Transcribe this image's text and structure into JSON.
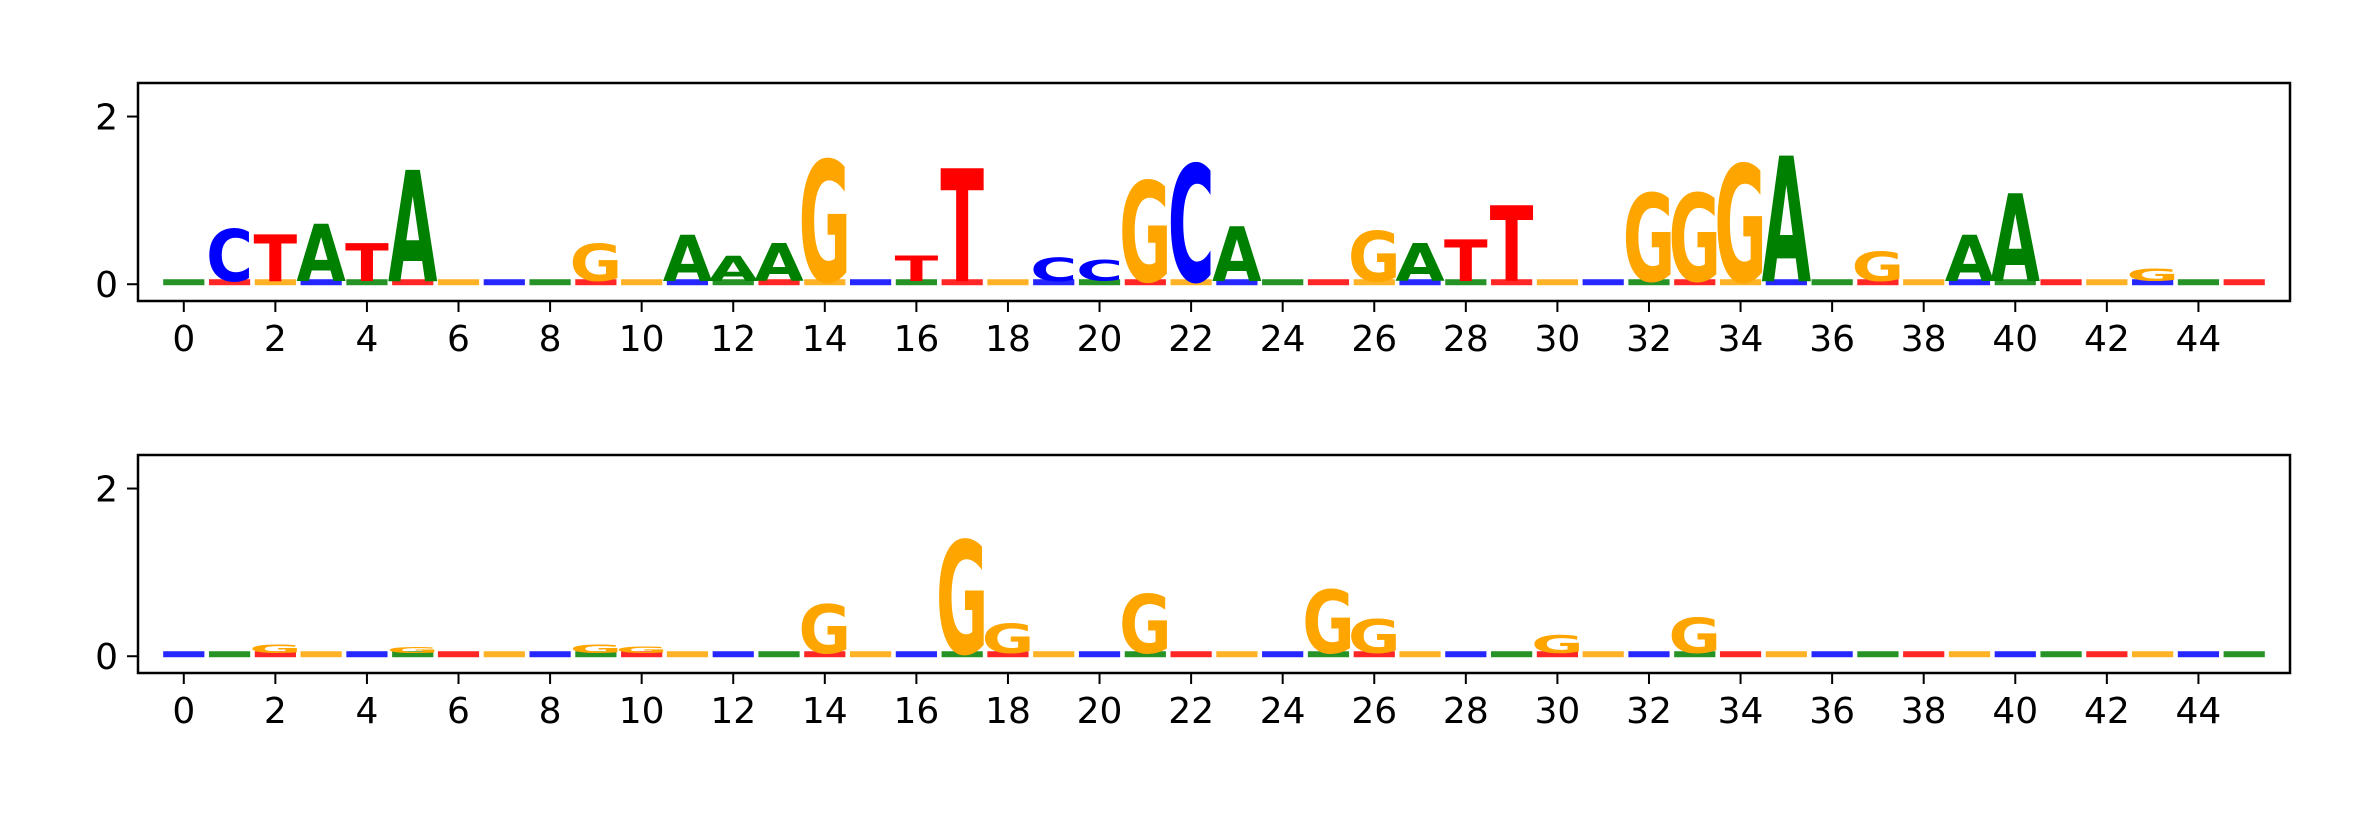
{
  "colors": {
    "A": "#008000",
    "C": "#0000ff",
    "G": "#ffa500",
    "T": "#ff0000"
  },
  "chart_data": [
    {
      "type": "sequence-logo",
      "x_ticks": [
        "0",
        "2",
        "4",
        "6",
        "8",
        "10",
        "12",
        "14",
        "16",
        "18",
        "20",
        "22",
        "24",
        "26",
        "28",
        "30",
        "32",
        "34",
        "36",
        "38",
        "40",
        "42",
        "44"
      ],
      "y_ticks": [
        "0",
        "2"
      ],
      "xlim": [
        -1,
        46
      ],
      "ylim": [
        -0.2,
        2.4
      ],
      "positions": [
        {
          "pos": 1,
          "letter": "C",
          "height": 0.62
        },
        {
          "pos": 2,
          "letter": "T",
          "height": 0.56
        },
        {
          "pos": 3,
          "letter": "A",
          "height": 0.68
        },
        {
          "pos": 4,
          "letter": "T",
          "height": 0.45
        },
        {
          "pos": 5,
          "letter": "A",
          "height": 1.33
        },
        {
          "pos": 9,
          "letter": "G",
          "height": 0.44
        },
        {
          "pos": 11,
          "letter": "A",
          "height": 0.55
        },
        {
          "pos": 12,
          "letter": "A",
          "height": 0.3
        },
        {
          "pos": 13,
          "letter": "A",
          "height": 0.45
        },
        {
          "pos": 14,
          "letter": "G",
          "height": 1.45
        },
        {
          "pos": 16,
          "letter": "T",
          "height": 0.3
        },
        {
          "pos": 17,
          "letter": "T",
          "height": 1.35
        },
        {
          "pos": 19,
          "letter": "C",
          "height": 0.28
        },
        {
          "pos": 20,
          "letter": "C",
          "height": 0.25
        },
        {
          "pos": 21,
          "letter": "G",
          "height": 1.2
        },
        {
          "pos": 22,
          "letter": "C",
          "height": 1.4
        },
        {
          "pos": 23,
          "letter": "A",
          "height": 0.65
        },
        {
          "pos": 26,
          "letter": "G",
          "height": 0.6
        },
        {
          "pos": 27,
          "letter": "A",
          "height": 0.45
        },
        {
          "pos": 28,
          "letter": "T",
          "height": 0.5
        },
        {
          "pos": 29,
          "letter": "T",
          "height": 0.9
        },
        {
          "pos": 32,
          "letter": "G",
          "height": 1.05
        },
        {
          "pos": 33,
          "letter": "G",
          "height": 1.05
        },
        {
          "pos": 34,
          "letter": "G",
          "height": 1.4
        },
        {
          "pos": 35,
          "letter": "A",
          "height": 1.5
        },
        {
          "pos": 37,
          "letter": "G",
          "height": 0.35
        },
        {
          "pos": 39,
          "letter": "A",
          "height": 0.55
        },
        {
          "pos": 40,
          "letter": "A",
          "height": 1.05
        },
        {
          "pos": 43,
          "letter": "G",
          "height": 0.15
        }
      ]
    },
    {
      "type": "sequence-logo",
      "x_ticks": [
        "0",
        "2",
        "4",
        "6",
        "8",
        "10",
        "12",
        "14",
        "16",
        "18",
        "20",
        "22",
        "24",
        "26",
        "28",
        "30",
        "32",
        "34",
        "36",
        "38",
        "40",
        "42",
        "44"
      ],
      "y_ticks": [
        "0",
        "2"
      ],
      "xlim": [
        -1,
        46
      ],
      "ylim": [
        -0.2,
        2.4
      ],
      "positions": [
        {
          "pos": 2,
          "letter": "G",
          "height": 0.1
        },
        {
          "pos": 5,
          "letter": "G",
          "height": 0.07
        },
        {
          "pos": 9,
          "letter": "G",
          "height": 0.1
        },
        {
          "pos": 10,
          "letter": "G",
          "height": 0.08
        },
        {
          "pos": 14,
          "letter": "G",
          "height": 0.58
        },
        {
          "pos": 17,
          "letter": "G",
          "height": 1.35
        },
        {
          "pos": 18,
          "letter": "G",
          "height": 0.35
        },
        {
          "pos": 21,
          "letter": "G",
          "height": 0.7
        },
        {
          "pos": 25,
          "letter": "G",
          "height": 0.75
        },
        {
          "pos": 26,
          "letter": "G",
          "height": 0.4
        },
        {
          "pos": 30,
          "letter": "G",
          "height": 0.22
        },
        {
          "pos": 33,
          "letter": "G",
          "height": 0.42
        }
      ]
    }
  ]
}
